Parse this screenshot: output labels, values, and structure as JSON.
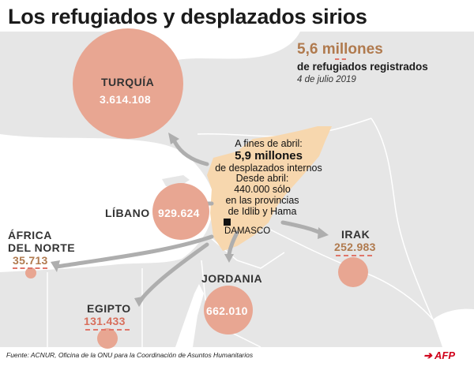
{
  "title": "Los refugiados y desplazados sirios",
  "summary": {
    "total": "5,6 millones",
    "total_label": "de refugiados registrados",
    "date": "4 de julio 2019"
  },
  "syria": {
    "line1": "A fines de abril:",
    "line2": "5,9 millones",
    "line3": "de desplazados internos",
    "line4": "Desde abril:",
    "line5": "440.000 sólo",
    "line6": "en las provincias",
    "line7": "de Idlib y Hama",
    "capital": "DAMASCO"
  },
  "countries": {
    "turkey": {
      "name": "TURQUÍA",
      "value": "3.614.108"
    },
    "lebanon": {
      "name": "LÍBANO",
      "value": "929.624"
    },
    "jordan": {
      "name": "JORDANIA",
      "value": "662.010"
    },
    "iraq": {
      "name": "IRAK",
      "value": "252.983"
    },
    "egypt": {
      "name": "EGIPTO",
      "value": "131.433"
    },
    "north_africa": {
      "name_line1": "ÁFRICA",
      "name_line2": "DEL NORTE",
      "value": "35.713"
    }
  },
  "source": "Fuente: ACNUR, Oficina de la ONU para la Coordinación de Asuntos Humanitarios",
  "credit": "AFP",
  "colors": {
    "bubble": "#e8a692",
    "syria": "#f7d7ae",
    "value_text": "#b07a4e",
    "accent": "#d0021b",
    "land": "#e6e6e6",
    "sea": "#ffffff"
  }
}
